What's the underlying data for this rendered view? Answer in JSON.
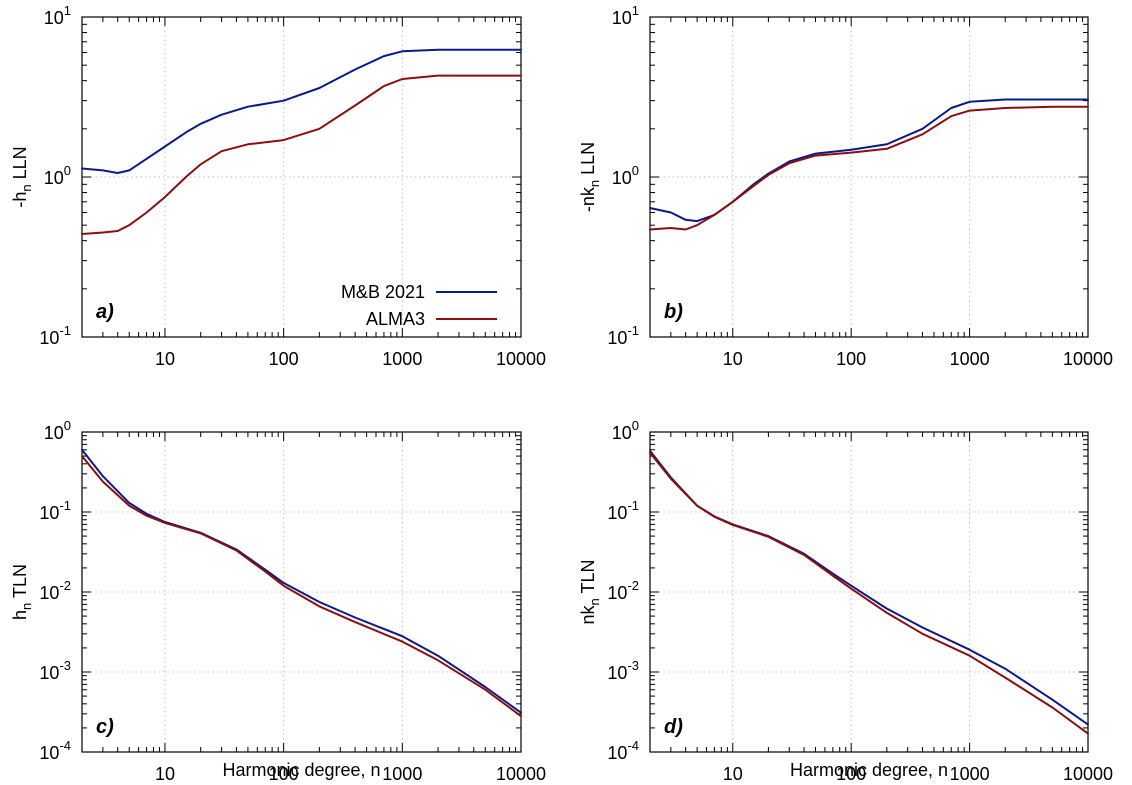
{
  "figure": {
    "xlabel": "Harmonic degree, n",
    "legend": {
      "position": "bottom-right",
      "panel": "a)"
    }
  },
  "chart_data": [
    {
      "type": "line",
      "panel": "a)",
      "ylabel": {
        "main": "-h",
        "sub": "n",
        "rest": " LLN"
      },
      "xscale": "log",
      "yscale": "log",
      "xlim": [
        2,
        10000
      ],
      "ylim": [
        0.1,
        10
      ],
      "grid": true,
      "xticks": [
        {
          "v": 10,
          "label": "10"
        },
        {
          "v": 100,
          "label": "100"
        },
        {
          "v": 1000,
          "label": "1000"
        },
        {
          "v": 10000,
          "label": "10000"
        }
      ],
      "yticks": [
        {
          "v": 0.1,
          "base": "10",
          "exp": "-1"
        },
        {
          "v": 1,
          "base": "10",
          "exp": "0"
        },
        {
          "v": 10,
          "base": "10",
          "exp": "1"
        }
      ],
      "series": [
        {
          "name": "M&B 2021",
          "color": "#0a1a8c",
          "x": [
            2,
            3,
            4,
            5,
            7,
            10,
            15,
            20,
            30,
            50,
            100,
            200,
            400,
            700,
            1000,
            2000,
            5000,
            10000
          ],
          "y": [
            1.13,
            1.1,
            1.06,
            1.1,
            1.3,
            1.55,
            1.9,
            2.15,
            2.45,
            2.75,
            3.0,
            3.6,
            4.7,
            5.7,
            6.1,
            6.25,
            6.25,
            6.25
          ]
        },
        {
          "name": "ALMA3",
          "color": "#8c0e0e",
          "x": [
            2,
            3,
            4,
            5,
            7,
            10,
            15,
            20,
            30,
            50,
            100,
            200,
            400,
            700,
            1000,
            2000,
            5000,
            10000
          ],
          "y": [
            0.44,
            0.45,
            0.46,
            0.5,
            0.6,
            0.75,
            1.0,
            1.2,
            1.45,
            1.6,
            1.7,
            2.0,
            2.8,
            3.7,
            4.1,
            4.3,
            4.3,
            4.3
          ]
        }
      ]
    },
    {
      "type": "line",
      "panel": "b)",
      "ylabel": {
        "main": "-nk",
        "sub": "n",
        "rest": " LLN"
      },
      "xscale": "log",
      "yscale": "log",
      "xlim": [
        2,
        10000
      ],
      "ylim": [
        0.1,
        10
      ],
      "grid": true,
      "xticks": [
        {
          "v": 10,
          "label": "10"
        },
        {
          "v": 100,
          "label": "100"
        },
        {
          "v": 1000,
          "label": "1000"
        },
        {
          "v": 10000,
          "label": "10000"
        }
      ],
      "yticks": [
        {
          "v": 0.1,
          "base": "10",
          "exp": "-1"
        },
        {
          "v": 1,
          "base": "10",
          "exp": "0"
        },
        {
          "v": 10,
          "base": "10",
          "exp": "1"
        }
      ],
      "series": [
        {
          "name": "M&B 2021",
          "color": "#0a1a8c",
          "x": [
            2,
            3,
            4,
            5,
            7,
            10,
            15,
            20,
            30,
            50,
            100,
            200,
            400,
            700,
            1000,
            2000,
            5000,
            10000
          ],
          "y": [
            0.64,
            0.6,
            0.54,
            0.53,
            0.58,
            0.7,
            0.9,
            1.05,
            1.25,
            1.4,
            1.48,
            1.6,
            2.0,
            2.7,
            2.95,
            3.05,
            3.05,
            3.05
          ]
        },
        {
          "name": "ALMA3",
          "color": "#8c0e0e",
          "x": [
            2,
            3,
            4,
            5,
            7,
            10,
            15,
            20,
            30,
            50,
            100,
            200,
            400,
            700,
            1000,
            2000,
            5000,
            10000
          ],
          "y": [
            0.47,
            0.48,
            0.47,
            0.5,
            0.58,
            0.7,
            0.88,
            1.03,
            1.22,
            1.36,
            1.42,
            1.5,
            1.85,
            2.4,
            2.6,
            2.7,
            2.75,
            2.75
          ]
        }
      ]
    },
    {
      "type": "line",
      "panel": "c)",
      "ylabel": {
        "main": "h",
        "sub": "n",
        "rest": " TLN"
      },
      "xscale": "log",
      "yscale": "log",
      "xlim": [
        2,
        10000
      ],
      "ylim": [
        0.0001,
        1
      ],
      "grid": true,
      "xticks": [
        {
          "v": 10,
          "label": "10"
        },
        {
          "v": 100,
          "label": "100"
        },
        {
          "v": 1000,
          "label": "1000"
        },
        {
          "v": 10000,
          "label": "10000"
        }
      ],
      "yticks": [
        {
          "v": 0.0001,
          "base": "10",
          "exp": "-4"
        },
        {
          "v": 0.001,
          "base": "10",
          "exp": "-3"
        },
        {
          "v": 0.01,
          "base": "10",
          "exp": "-2"
        },
        {
          "v": 0.1,
          "base": "10",
          "exp": "-1"
        },
        {
          "v": 1,
          "base": "10",
          "exp": "0"
        }
      ],
      "series": [
        {
          "name": "M&B 2021",
          "color": "#0a1a8c",
          "x": [
            2,
            3,
            5,
            7,
            10,
            20,
            40,
            70,
            100,
            200,
            400,
            1000,
            2000,
            5000,
            10000
          ],
          "y": [
            0.6,
            0.28,
            0.13,
            0.095,
            0.075,
            0.055,
            0.034,
            0.019,
            0.013,
            0.0075,
            0.0048,
            0.0028,
            0.0016,
            0.00065,
            0.00031
          ]
        },
        {
          "name": "ALMA3",
          "color": "#8c0e0e",
          "x": [
            2,
            3,
            5,
            7,
            10,
            20,
            40,
            70,
            100,
            200,
            400,
            1000,
            2000,
            5000,
            10000
          ],
          "y": [
            0.5,
            0.24,
            0.12,
            0.09,
            0.073,
            0.054,
            0.033,
            0.018,
            0.012,
            0.0066,
            0.0042,
            0.0024,
            0.0014,
            0.0006,
            0.00028
          ]
        }
      ]
    },
    {
      "type": "line",
      "panel": "d)",
      "ylabel": {
        "main": "nk",
        "sub": "n",
        "rest": " TLN"
      },
      "xscale": "log",
      "yscale": "log",
      "xlim": [
        2,
        10000
      ],
      "ylim": [
        0.0001,
        1
      ],
      "grid": true,
      "xticks": [
        {
          "v": 10,
          "label": "10"
        },
        {
          "v": 100,
          "label": "100"
        },
        {
          "v": 1000,
          "label": "1000"
        },
        {
          "v": 10000,
          "label": "10000"
        }
      ],
      "yticks": [
        {
          "v": 0.0001,
          "base": "10",
          "exp": "-4"
        },
        {
          "v": 0.001,
          "base": "10",
          "exp": "-3"
        },
        {
          "v": 0.01,
          "base": "10",
          "exp": "-2"
        },
        {
          "v": 0.1,
          "base": "10",
          "exp": "-1"
        },
        {
          "v": 1,
          "base": "10",
          "exp": "0"
        }
      ],
      "series": [
        {
          "name": "M&B 2021",
          "color": "#0a1a8c",
          "x": [
            2,
            3,
            5,
            7,
            10,
            20,
            40,
            70,
            100,
            200,
            400,
            1000,
            2000,
            5000,
            10000
          ],
          "y": [
            0.58,
            0.27,
            0.12,
            0.088,
            0.07,
            0.05,
            0.03,
            0.017,
            0.012,
            0.0062,
            0.0036,
            0.0019,
            0.0011,
            0.00045,
            0.00022
          ]
        },
        {
          "name": "ALMA3",
          "color": "#8c0e0e",
          "x": [
            2,
            3,
            5,
            7,
            10,
            20,
            40,
            70,
            100,
            200,
            400,
            1000,
            2000,
            5000,
            10000
          ],
          "y": [
            0.55,
            0.26,
            0.12,
            0.087,
            0.069,
            0.049,
            0.029,
            0.016,
            0.011,
            0.0055,
            0.003,
            0.0016,
            0.00085,
            0.00036,
            0.00017
          ]
        }
      ]
    }
  ]
}
